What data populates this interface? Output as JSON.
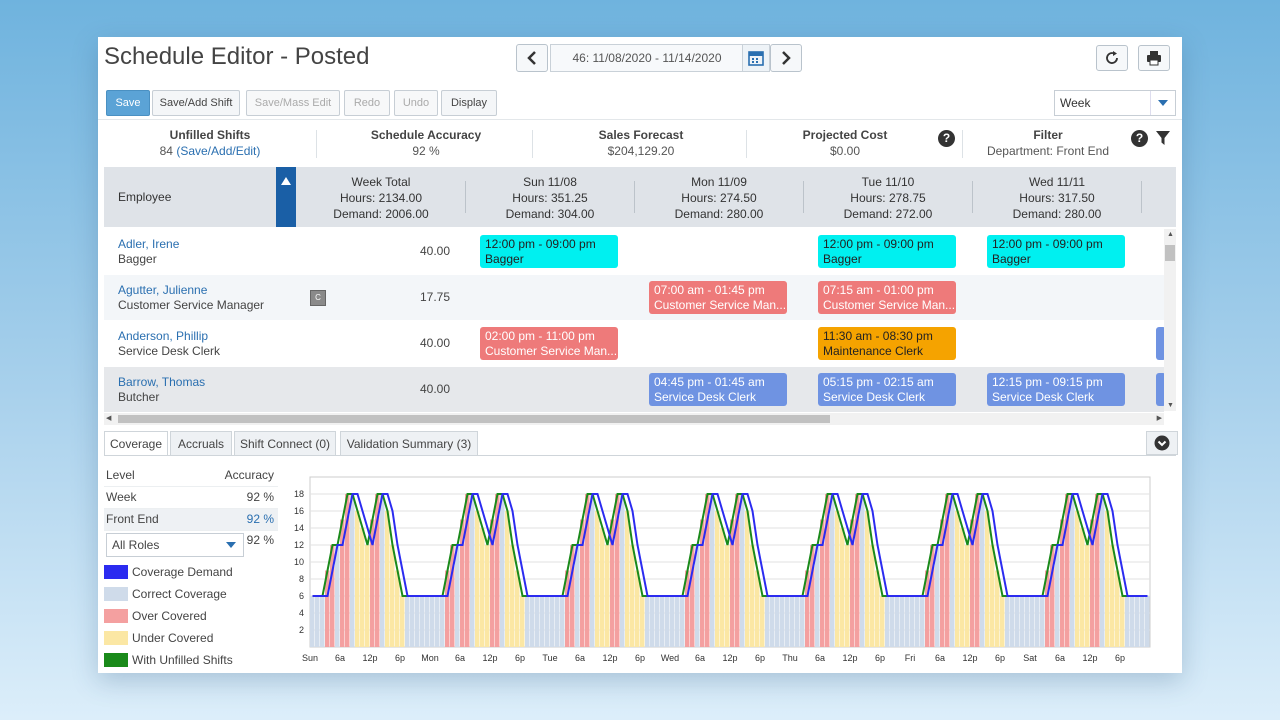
{
  "header": {
    "title": "Schedule Editor - Posted",
    "date_range": "46: 11/08/2020 - 11/14/2020"
  },
  "toolbar": {
    "save": "Save",
    "save_add_shift": "Save/Add Shift",
    "save_mass_edit": "Save/Mass Edit",
    "redo": "Redo",
    "undo": "Undo",
    "display": "Display",
    "view_select": "Week"
  },
  "summary": {
    "unfilled_label": "Unfilled Shifts",
    "unfilled_count": "84",
    "unfilled_link": "(Save/Add/Edit)",
    "accuracy_label": "Schedule Accuracy",
    "accuracy_value": "92 %",
    "forecast_label": "Sales Forecast",
    "forecast_value": "$204,129.20",
    "cost_label": "Projected Cost",
    "cost_value": "$0.00",
    "filter_label": "Filter",
    "filter_value": "Department: Front End"
  },
  "grid": {
    "employee_header": "Employee",
    "week_total": {
      "title": "Week Total",
      "hours": "Hours: 2134.00",
      "demand": "Demand: 2006.00"
    },
    "days": [
      {
        "title": "Sun 11/08",
        "hours": "Hours: 351.25",
        "demand": "Demand: 304.00"
      },
      {
        "title": "Mon 11/09",
        "hours": "Hours: 274.50",
        "demand": "Demand: 280.00"
      },
      {
        "title": "Tue 11/10",
        "hours": "Hours: 278.75",
        "demand": "Demand: 272.00"
      },
      {
        "title": "Wed 11/11",
        "hours": "Hours: 317.50",
        "demand": "Demand: 280.00"
      }
    ],
    "rows": [
      {
        "name": "Adler, Irene",
        "role": "Bagger",
        "hours": "40.00",
        "badge": "",
        "shifts": [
          {
            "day": 0,
            "time": "12:00 pm - 09:00 pm",
            "label": "Bagger",
            "color": "#00f0f0"
          },
          {
            "day": 2,
            "time": "12:00 pm - 09:00 pm",
            "label": "Bagger",
            "color": "#00f0f0"
          },
          {
            "day": 3,
            "time": "12:00 pm - 09:00 pm",
            "label": "Bagger",
            "color": "#00f0f0"
          }
        ]
      },
      {
        "name": "Agutter, Julienne",
        "role": "Customer Service Manager",
        "hours": "17.75",
        "badge": "C",
        "shifts": [
          {
            "day": 1,
            "time": "07:00 am - 01:45 pm",
            "label": "Customer Service Man...",
            "color": "#ee7a7a"
          },
          {
            "day": 2,
            "time": "07:15 am - 01:00 pm",
            "label": "Customer Service Man...",
            "color": "#ee7a7a"
          }
        ]
      },
      {
        "name": "Anderson, Phillip",
        "role": "Service Desk Clerk",
        "hours": "40.00",
        "badge": "",
        "shifts": [
          {
            "day": 0,
            "time": "02:00 pm - 11:00 pm",
            "label": "Customer Service Man...",
            "color": "#ee7a7a"
          },
          {
            "day": 2,
            "time": "11:30 am - 08:30 pm",
            "label": "Maintenance Clerk",
            "color": "#f5a300"
          }
        ]
      },
      {
        "name": "Barrow, Thomas",
        "role": "Butcher",
        "hours": "40.00",
        "badge": "",
        "shifts": [
          {
            "day": 1,
            "time": "04:45 pm - 01:45 am",
            "label": "Service Desk Clerk",
            "color": "#6f93e2"
          },
          {
            "day": 2,
            "time": "05:15 pm - 02:15 am",
            "label": "Service Desk Clerk",
            "color": "#6f93e2"
          },
          {
            "day": 3,
            "time": "12:15 pm - 09:15 pm",
            "label": "Service Desk Clerk",
            "color": "#6f93e2"
          }
        ]
      }
    ]
  },
  "tabs": [
    "Coverage",
    "Accruals",
    "Shift Connect (0)",
    "Validation Summary (3)"
  ],
  "coverage_panel": {
    "level_label": "Level",
    "accuracy_label": "Accuracy",
    "rows": [
      {
        "level": "Week",
        "accuracy": "92 %"
      },
      {
        "level": "Front End",
        "accuracy": "92 %"
      }
    ],
    "roles_select": "All Roles",
    "roles_accuracy": "92 %",
    "legend": [
      {
        "label": "Coverage Demand",
        "color": "#2b2bf0"
      },
      {
        "label": "Correct Coverage",
        "color": "#cfdbea"
      },
      {
        "label": "Over Covered",
        "color": "#f4a0a0"
      },
      {
        "label": "Under Covered",
        "color": "#fbe7a4"
      },
      {
        "label": "With Unfilled Shifts",
        "color": "#1a8a1a"
      }
    ]
  },
  "chart_data": {
    "type": "area",
    "ylim": [
      0,
      20
    ],
    "yticks": [
      2,
      4,
      6,
      8,
      10,
      12,
      14,
      16,
      18
    ],
    "xtick_labels": [
      "Sun",
      "6a",
      "12p",
      "6p",
      "Mon",
      "6a",
      "12p",
      "6p",
      "Tue",
      "6a",
      "12p",
      "6p",
      "Wed",
      "6a",
      "12p",
      "6p",
      "Thu",
      "6a",
      "12p",
      "6p",
      "Fri",
      "6a",
      "12p",
      "6p",
      "Sat",
      "6a",
      "12p",
      "6p"
    ],
    "points_per_day": 24,
    "demand": [
      6,
      6,
      6,
      6,
      9,
      12,
      12,
      15,
      18,
      18,
      16,
      14,
      12,
      15,
      18,
      18,
      16,
      12,
      9,
      6,
      6,
      6,
      6,
      6
    ],
    "coverage_peak_shift": 1
  }
}
